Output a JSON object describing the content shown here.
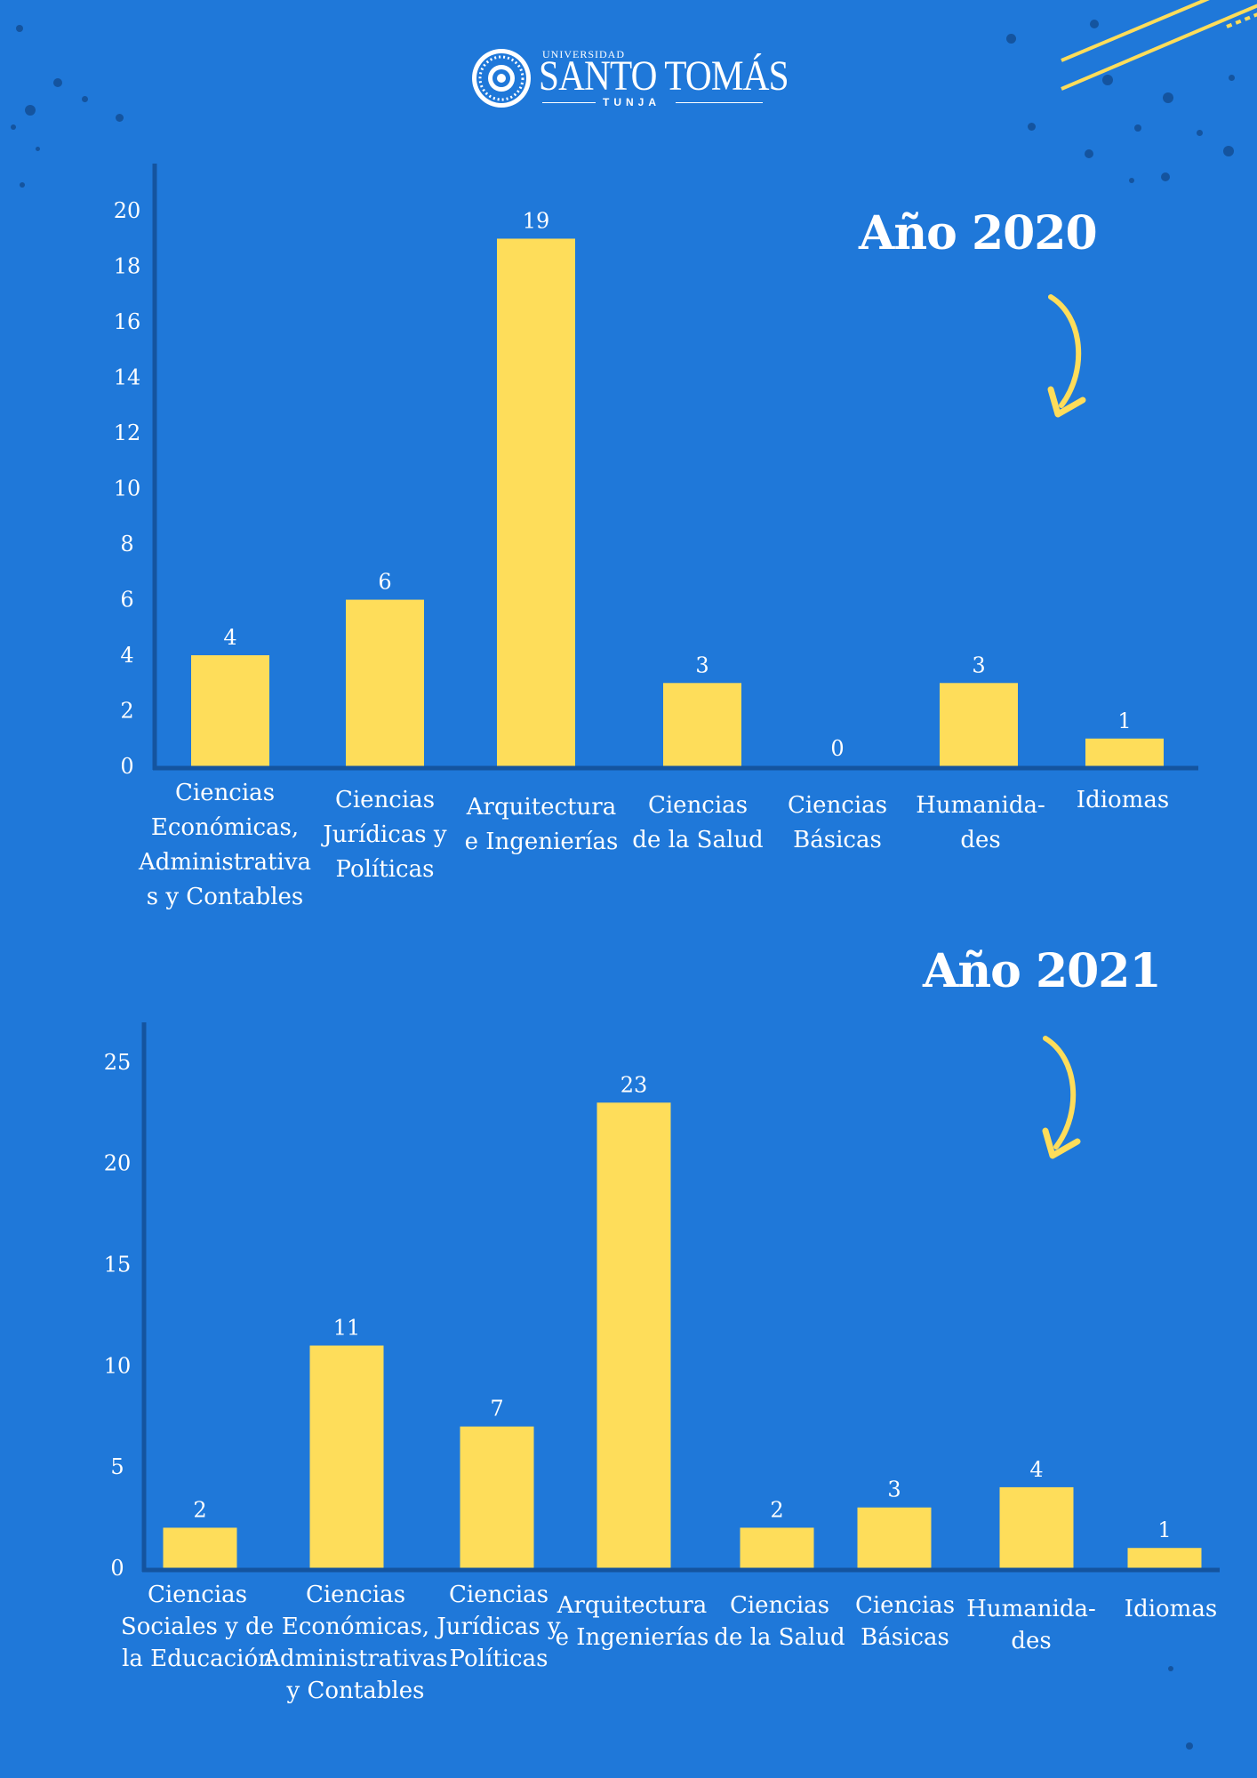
{
  "header": {
    "logo": {
      "university_label": "UNIVERSIDAD",
      "name": "SANTO TOMÁS",
      "city": "TUNJA"
    }
  },
  "colors": {
    "background": "#1f78d9",
    "bar": "#fedd5a",
    "axis": "#14549f",
    "text": "#ffffff",
    "arrow": "#fedd5a"
  },
  "chart_data": [
    {
      "type": "bar",
      "title": "Año 2020",
      "categories": [
        "Ciencias Económicas, Administrativa s y Contables",
        "Ciencias Jurídicas y Políticas",
        "Arquitectura e Ingenierías",
        "Ciencias de la Salud",
        "Ciencias Básicas",
        "Humanida- des",
        "Idiomas"
      ],
      "category_lines": [
        [
          "Ciencias",
          "Económicas,",
          "Administrativa",
          "s y Contables"
        ],
        [
          "Ciencias",
          "Jurídicas y",
          "Políticas"
        ],
        [
          "Arquitectura",
          "e Ingenierías"
        ],
        [
          "Ciencias",
          "de la Salud"
        ],
        [
          "Ciencias",
          "Básicas"
        ],
        [
          "Humanida-",
          "des"
        ],
        [
          "Idiomas"
        ]
      ],
      "values": [
        4,
        6,
        19,
        3,
        0,
        3,
        1
      ],
      "data_labels": [
        "4",
        "6",
        "19",
        "3",
        "0",
        "3",
        "1"
      ],
      "yticks": [
        "0",
        "2",
        "4",
        "6",
        "8",
        "10",
        "12",
        "14",
        "16",
        "18",
        "20"
      ],
      "ylim": [
        0,
        21
      ],
      "xlabel": "",
      "ylabel": "",
      "grid": false
    },
    {
      "type": "bar",
      "title": "Año 2021",
      "categories": [
        "Ciencias Sociales y de la Educación",
        "Ciencias Económicas, Administrativas y Contables",
        "Ciencias Jurídicas y Políticas",
        "Arquitectura e Ingenierías",
        "Ciencias de la Salud",
        "Ciencias Básicas",
        "Humanida- des",
        "Idiomas"
      ],
      "category_lines": [
        [
          "Ciencias",
          "Sociales y de",
          "la Educación"
        ],
        [
          "Ciencias",
          "Económicas,",
          "Administrativas",
          "y Contables"
        ],
        [
          "Ciencias",
          "Jurídicas y",
          "Políticas"
        ],
        [
          "Arquitectura",
          "e Ingenierías"
        ],
        [
          "Ciencias",
          "de la Salud"
        ],
        [
          "Ciencias",
          "Básicas"
        ],
        [
          "Humanida-",
          "des"
        ],
        [
          "Idiomas"
        ]
      ],
      "values": [
        2,
        11,
        7,
        23,
        2,
        3,
        4,
        1
      ],
      "data_labels": [
        "2",
        "11",
        "7",
        "23",
        "2",
        "3",
        "4",
        "1"
      ],
      "yticks": [
        "0",
        "5",
        "10",
        "15",
        "20",
        "25"
      ],
      "ylim": [
        0,
        26
      ],
      "xlabel": "",
      "ylabel": "",
      "grid": false
    }
  ]
}
